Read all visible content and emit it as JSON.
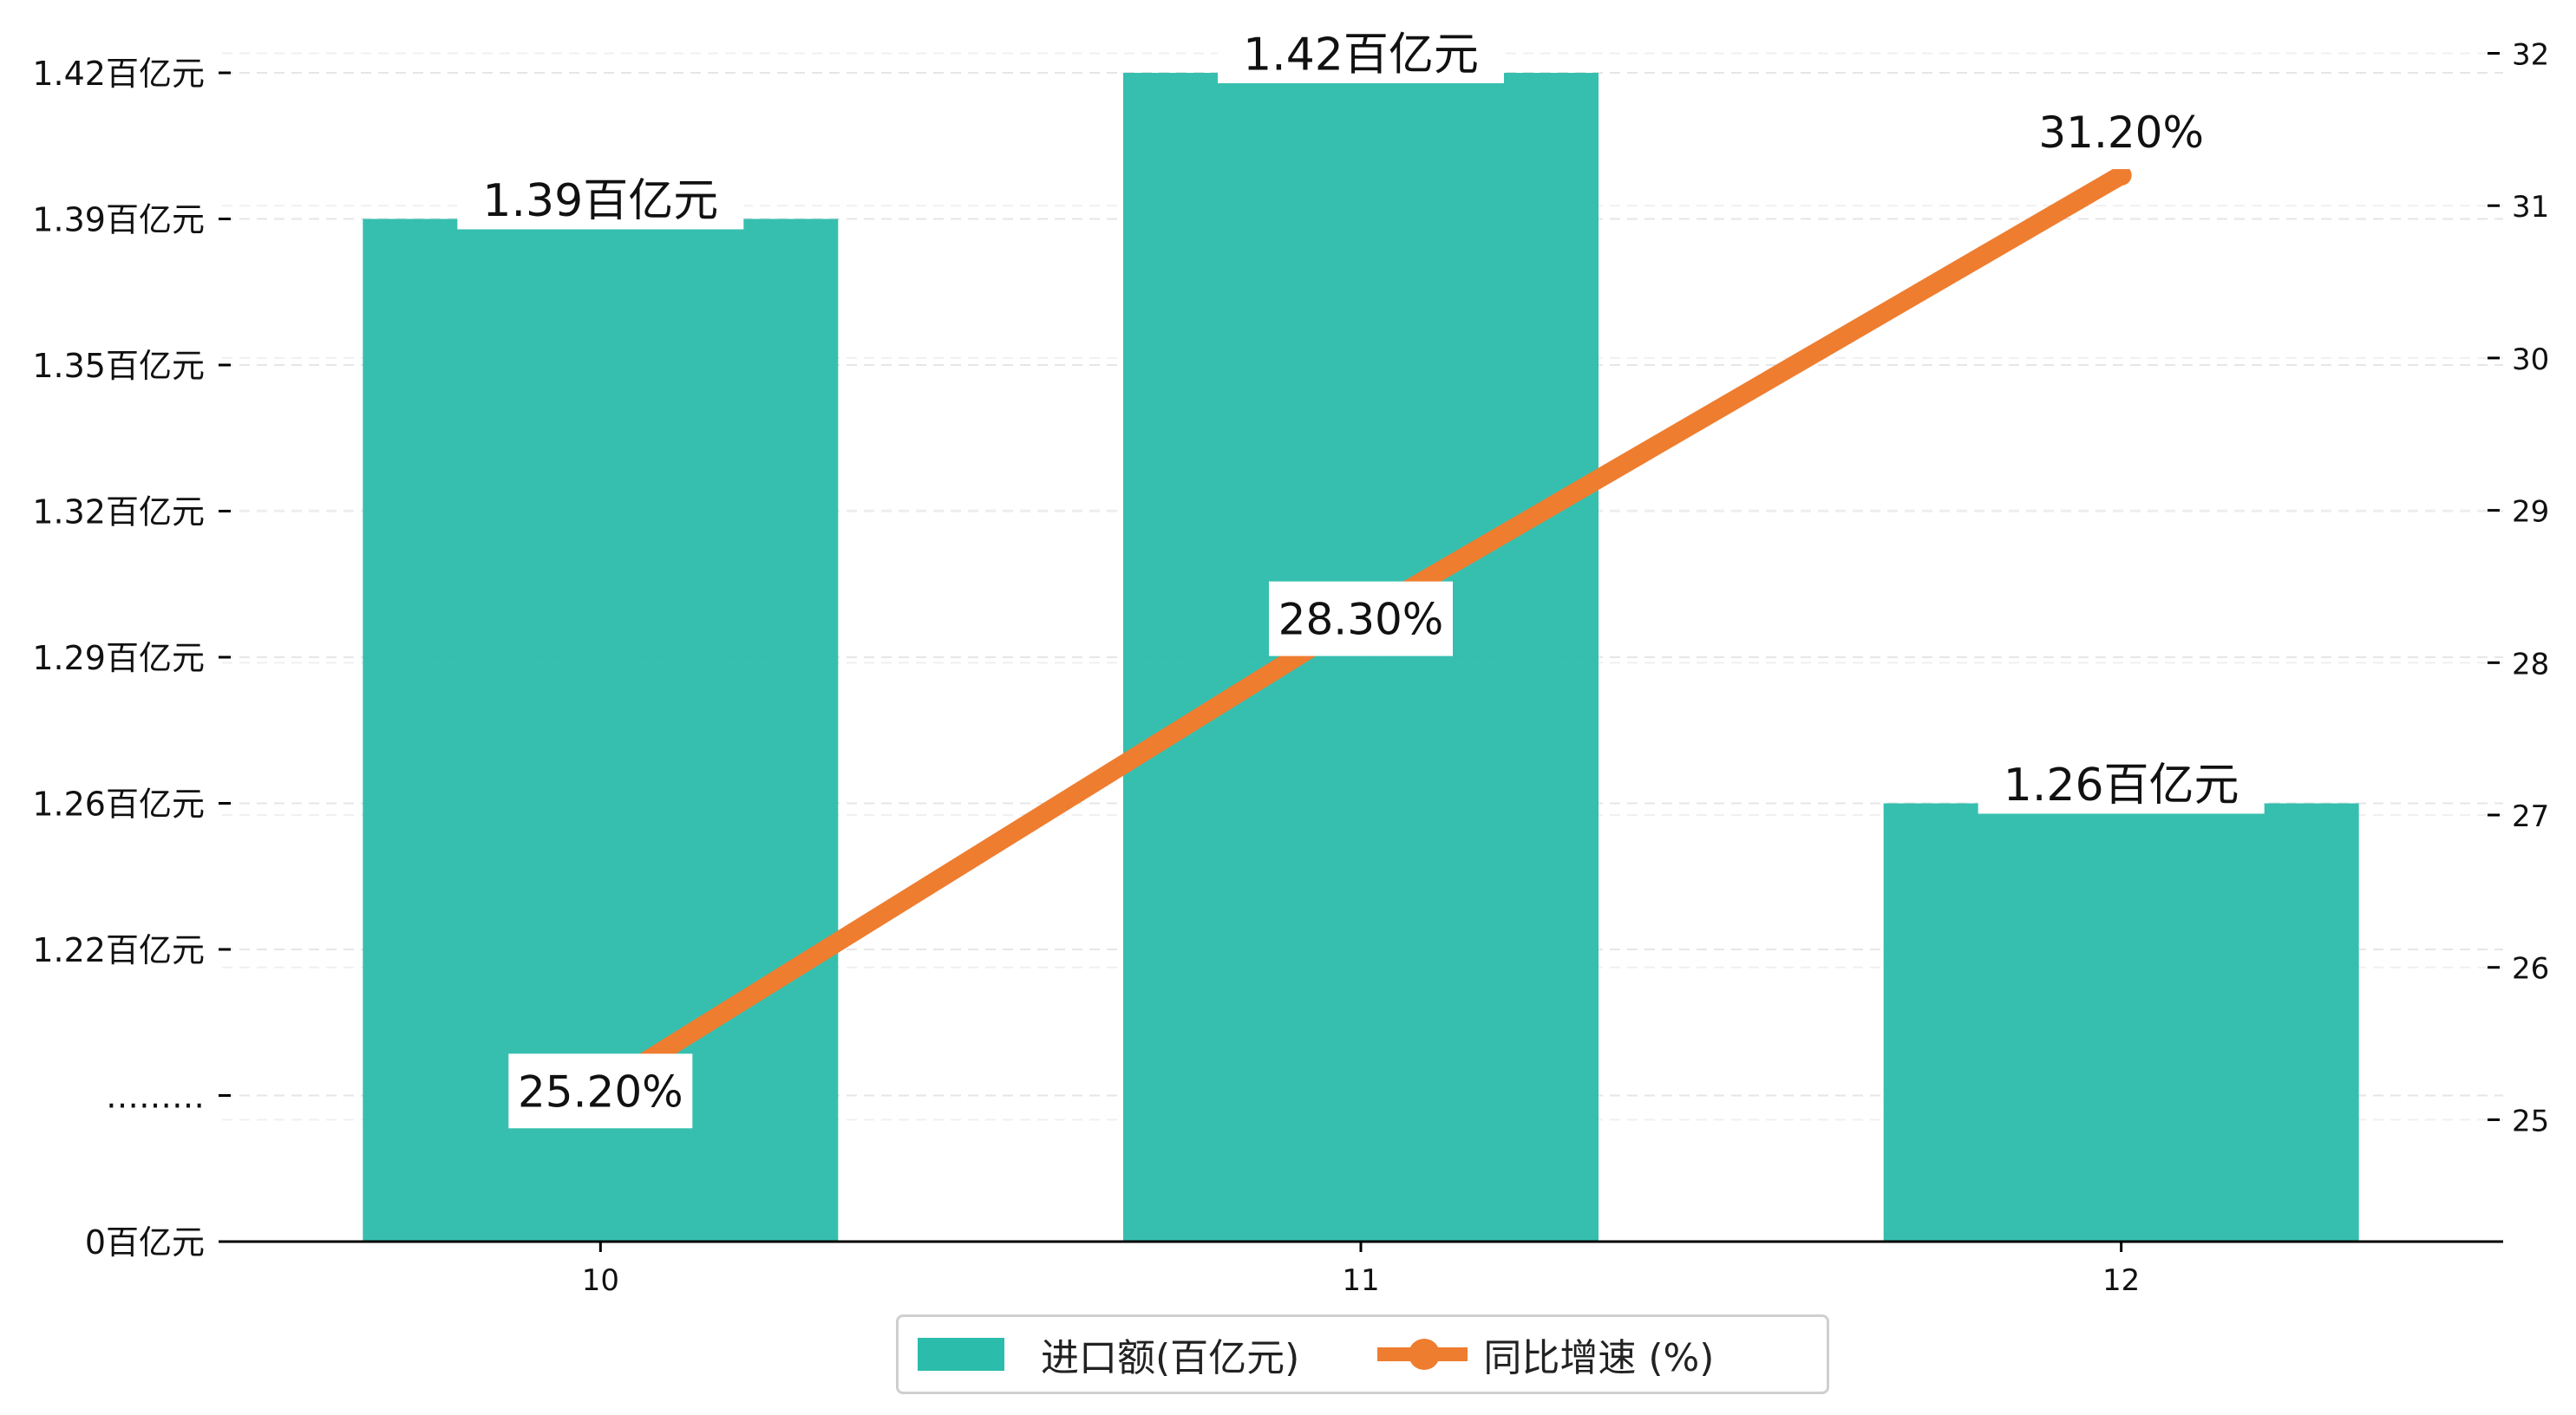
{
  "chart_data": {
    "type": "bar",
    "categories": [
      "10",
      "11",
      "12"
    ],
    "series": [
      {
        "name": "进口额(百亿元)",
        "axis": "left",
        "kind": "bar",
        "values": [
          1.39,
          1.42,
          1.26
        ],
        "labels": [
          "1.39百亿元",
          "1.42百亿元",
          "1.26百亿元"
        ],
        "color": "#2bbcab"
      },
      {
        "name": "同比增速 (%)",
        "axis": "right",
        "kind": "line",
        "values": [
          25.2,
          28.3,
          31.2
        ],
        "labels": [
          "25.20%",
          "28.30%",
          "31.20%"
        ],
        "color": "#ee7d30"
      }
    ],
    "left_axis": {
      "tick_labels": [
        "0百亿元",
        "………",
        "1.22百亿元",
        "1.26百亿元",
        "1.29百亿元",
        "1.32百亿元",
        "1.35百亿元",
        "1.39百亿元",
        "1.42百亿元"
      ],
      "broken": true
    },
    "right_axis": {
      "ticks": [
        25,
        26,
        27,
        28,
        29,
        30,
        31,
        32
      ],
      "ylim": [
        24.2,
        32.35
      ]
    },
    "grid": "horizontal dashed",
    "legend": "bottom-center"
  }
}
